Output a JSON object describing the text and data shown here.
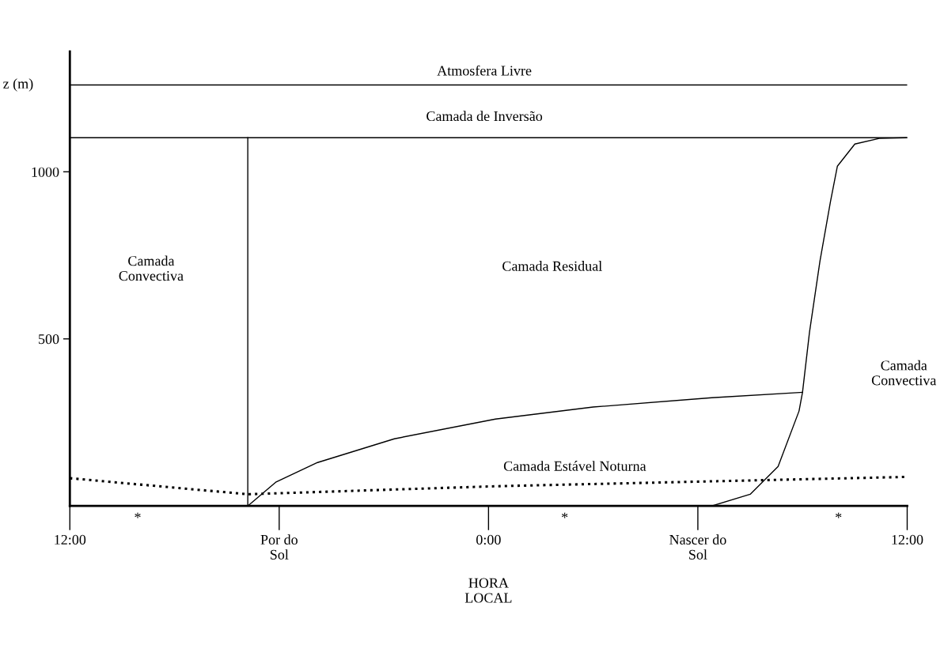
{
  "chart_data": {
    "type": "line",
    "xlabel": "HORA\nLOCAL",
    "ylabel": "z (m)",
    "xlim": [
      "2000-01-01T12:00",
      "2000-01-02T12:00"
    ],
    "ylim": [
      0,
      1360
    ],
    "xticks": [
      {
        "value": "2000-01-01T12:00",
        "label": "12:00"
      },
      {
        "value": "2000-01-01T18:00",
        "label": "Por do\nSol"
      },
      {
        "value": "2000-01-02T00:00",
        "label": "0:00"
      },
      {
        "value": "2000-01-02T06:00",
        "label": "Nascer do\nSol"
      },
      {
        "value": "2000-01-02T12:00",
        "label": "12:00"
      }
    ],
    "yticks": [
      500,
      1000
    ],
    "grid": false,
    "marker": "none",
    "series": [
      {
        "color": "#000000",
        "line_style": "solid",
        "x": [
          "2000-01-01T12:00",
          "2000-01-02T12:00"
        ],
        "values": [
          1260,
          1260
        ]
      },
      {
        "color": "#000000",
        "line_style": "solid",
        "x": [
          "2000-01-01T12:00",
          "2000-01-02T12:00"
        ],
        "values": [
          1102,
          1102
        ]
      },
      {
        "color": "#000000",
        "line_style": "solid",
        "x": [
          "2000-01-01T17:06",
          "2000-01-01T17:06"
        ],
        "values": [
          0,
          1102
        ]
      },
      {
        "color": "#000000",
        "line_style": "solid",
        "x": [
          "2000-01-01T17:06",
          "2000-01-01T17:54",
          "2000-01-01T19:06",
          "2000-01-01T21:18",
          "2000-01-02T00:12",
          "2000-01-02T03:00",
          "2000-01-02T06:24",
          "2000-01-02T09:00"
        ],
        "values": [
          0,
          71,
          130,
          201,
          260,
          296,
          324,
          340
        ]
      },
      {
        "color": "#000000",
        "line_style": "solid",
        "x": [
          "2000-01-02T06:24",
          "2000-01-02T07:30",
          "2000-01-02T08:18",
          "2000-01-02T08:54",
          "2000-01-02T09:00",
          "2000-01-02T09:12",
          "2000-01-02T09:30",
          "2000-01-02T09:48",
          "2000-01-02T10:00",
          "2000-01-02T10:30",
          "2000-01-02T11:12",
          "2000-01-02T12:00"
        ],
        "values": [
          0,
          35,
          118,
          284,
          340,
          520,
          733,
          910,
          1017,
          1083,
          1100,
          1102
        ]
      },
      {
        "color": "#000000",
        "line_style": "dotted",
        "x": [
          "2000-01-01T12:00",
          "2000-01-01T17:06",
          "2000-01-02T00:12",
          "2000-01-02T12:00"
        ],
        "values": [
          83,
          35,
          59,
          87
        ]
      }
    ],
    "annotations": [
      "Atmosfera Livre",
      "Camada de Inversão",
      "Camada\nConvectiva",
      "Camada Residual",
      "Camada\nConvectiva",
      "Camada Estável Noturna",
      "*",
      "*",
      "*"
    ]
  }
}
